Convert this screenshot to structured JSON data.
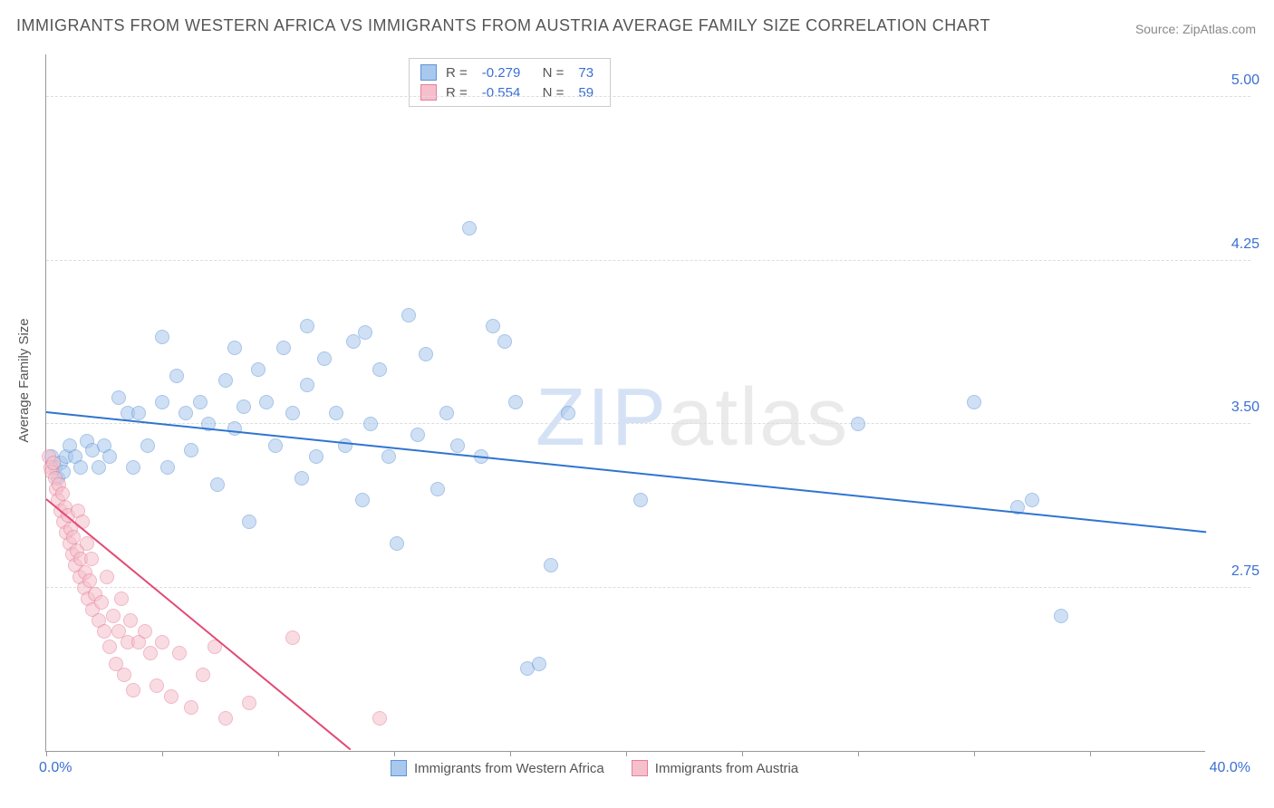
{
  "title": "IMMIGRANTS FROM WESTERN AFRICA VS IMMIGRANTS FROM AUSTRIA AVERAGE FAMILY SIZE CORRELATION CHART",
  "source_label": "Source: ",
  "source_value": "ZipAtlas.com",
  "y_axis_label": "Average Family Size",
  "watermark": {
    "zip": "ZIP",
    "atlas": "atlas"
  },
  "chart": {
    "type": "scatter",
    "xlim": [
      0,
      40
    ],
    "ylim": [
      2.0,
      5.2
    ],
    "x_min_label": "0.0%",
    "x_max_label": "40.0%",
    "y_ticks": [
      2.75,
      3.5,
      4.25,
      5.0
    ],
    "y_tick_labels": [
      "2.75",
      "3.50",
      "4.25",
      "5.00"
    ],
    "x_ticks": [
      0,
      4,
      8,
      12,
      16,
      20,
      24,
      28,
      32,
      36
    ],
    "background_color": "#ffffff",
    "grid_color": "#dddddd",
    "axis_color": "#999999",
    "tick_label_color": "#3b6fd4",
    "point_radius": 8,
    "point_opacity": 0.55,
    "series": [
      {
        "id": "western_africa",
        "label": "Immigrants from Western Africa",
        "color_fill": "#a8c8ed",
        "color_stroke": "#5f94d6",
        "r_label": "R = ",
        "r_value": "-0.279",
        "n_label": "N = ",
        "n_value": "73",
        "trend": {
          "x1": 0,
          "y1": 3.55,
          "x2": 40,
          "y2": 3.0,
          "color": "#2f74d0",
          "width": 2
        },
        "points": [
          [
            0.2,
            3.35
          ],
          [
            0.3,
            3.3
          ],
          [
            0.4,
            3.25
          ],
          [
            0.5,
            3.32
          ],
          [
            0.6,
            3.28
          ],
          [
            0.7,
            3.35
          ],
          [
            0.8,
            3.4
          ],
          [
            1.0,
            3.35
          ],
          [
            1.2,
            3.3
          ],
          [
            1.4,
            3.42
          ],
          [
            1.6,
            3.38
          ],
          [
            1.8,
            3.3
          ],
          [
            2.0,
            3.4
          ],
          [
            2.2,
            3.35
          ],
          [
            2.5,
            3.62
          ],
          [
            2.8,
            3.55
          ],
          [
            3.0,
            3.3
          ],
          [
            3.2,
            3.55
          ],
          [
            3.5,
            3.4
          ],
          [
            4.0,
            3.6
          ],
          [
            4.2,
            3.3
          ],
          [
            4.5,
            3.72
          ],
          [
            4.8,
            3.55
          ],
          [
            5.0,
            3.38
          ],
          [
            5.3,
            3.6
          ],
          [
            5.6,
            3.5
          ],
          [
            5.9,
            3.22
          ],
          [
            6.2,
            3.7
          ],
          [
            6.5,
            3.48
          ],
          [
            6.8,
            3.58
          ],
          [
            7.0,
            3.05
          ],
          [
            7.3,
            3.75
          ],
          [
            7.6,
            3.6
          ],
          [
            7.9,
            3.4
          ],
          [
            8.2,
            3.85
          ],
          [
            8.5,
            3.55
          ],
          [
            8.8,
            3.25
          ],
          [
            9.0,
            3.68
          ],
          [
            9.3,
            3.35
          ],
          [
            9.6,
            3.8
          ],
          [
            10.0,
            3.55
          ],
          [
            10.3,
            3.4
          ],
          [
            10.6,
            3.88
          ],
          [
            10.9,
            3.15
          ],
          [
            11.2,
            3.5
          ],
          [
            11.5,
            3.75
          ],
          [
            11.8,
            3.35
          ],
          [
            12.1,
            2.95
          ],
          [
            12.5,
            4.0
          ],
          [
            12.8,
            3.45
          ],
          [
            13.1,
            3.82
          ],
          [
            13.5,
            3.2
          ],
          [
            13.8,
            3.55
          ],
          [
            14.2,
            3.4
          ],
          [
            14.6,
            4.4
          ],
          [
            15.0,
            3.35
          ],
          [
            15.4,
            3.95
          ],
          [
            15.8,
            3.88
          ],
          [
            16.2,
            3.6
          ],
          [
            16.6,
            2.38
          ],
          [
            17.0,
            2.4
          ],
          [
            17.4,
            2.85
          ],
          [
            18.0,
            3.55
          ],
          [
            20.5,
            3.15
          ],
          [
            28.0,
            3.5
          ],
          [
            32.0,
            3.6
          ],
          [
            33.5,
            3.12
          ],
          [
            35.0,
            2.62
          ],
          [
            34.0,
            3.15
          ],
          [
            4.0,
            3.9
          ],
          [
            6.5,
            3.85
          ],
          [
            9.0,
            3.95
          ],
          [
            11.0,
            3.92
          ]
        ]
      },
      {
        "id": "austria",
        "label": "Immigrants from Austria",
        "color_fill": "#f5c0cb",
        "color_stroke": "#e77e9a",
        "r_label": "R = ",
        "r_value": "-0.554",
        "n_label": "N = ",
        "n_value": "59",
        "trend": {
          "x1": 0,
          "y1": 3.15,
          "x2": 10.5,
          "y2": 2.0,
          "color": "#e24a73",
          "width": 2
        },
        "points": [
          [
            0.1,
            3.35
          ],
          [
            0.15,
            3.3
          ],
          [
            0.2,
            3.28
          ],
          [
            0.25,
            3.32
          ],
          [
            0.3,
            3.25
          ],
          [
            0.35,
            3.2
          ],
          [
            0.4,
            3.15
          ],
          [
            0.45,
            3.22
          ],
          [
            0.5,
            3.1
          ],
          [
            0.55,
            3.18
          ],
          [
            0.6,
            3.05
          ],
          [
            0.65,
            3.12
          ],
          [
            0.7,
            3.0
          ],
          [
            0.75,
            3.08
          ],
          [
            0.8,
            2.95
          ],
          [
            0.85,
            3.02
          ],
          [
            0.9,
            2.9
          ],
          [
            0.95,
            2.98
          ],
          [
            1.0,
            2.85
          ],
          [
            1.05,
            2.92
          ],
          [
            1.1,
            3.1
          ],
          [
            1.15,
            2.8
          ],
          [
            1.2,
            2.88
          ],
          [
            1.25,
            3.05
          ],
          [
            1.3,
            2.75
          ],
          [
            1.35,
            2.82
          ],
          [
            1.4,
            2.95
          ],
          [
            1.45,
            2.7
          ],
          [
            1.5,
            2.78
          ],
          [
            1.55,
            2.88
          ],
          [
            1.6,
            2.65
          ],
          [
            1.7,
            2.72
          ],
          [
            1.8,
            2.6
          ],
          [
            1.9,
            2.68
          ],
          [
            2.0,
            2.55
          ],
          [
            2.1,
            2.8
          ],
          [
            2.2,
            2.48
          ],
          [
            2.3,
            2.62
          ],
          [
            2.4,
            2.4
          ],
          [
            2.5,
            2.55
          ],
          [
            2.6,
            2.7
          ],
          [
            2.7,
            2.35
          ],
          [
            2.8,
            2.5
          ],
          [
            2.9,
            2.6
          ],
          [
            3.0,
            2.28
          ],
          [
            3.2,
            2.5
          ],
          [
            3.4,
            2.55
          ],
          [
            3.6,
            2.45
          ],
          [
            3.8,
            2.3
          ],
          [
            4.0,
            2.5
          ],
          [
            4.3,
            2.25
          ],
          [
            4.6,
            2.45
          ],
          [
            5.0,
            2.2
          ],
          [
            5.4,
            2.35
          ],
          [
            5.8,
            2.48
          ],
          [
            6.2,
            2.15
          ],
          [
            7.0,
            2.22
          ],
          [
            8.5,
            2.52
          ],
          [
            11.5,
            2.15
          ]
        ]
      }
    ]
  },
  "legend": {
    "stats_box": true
  }
}
